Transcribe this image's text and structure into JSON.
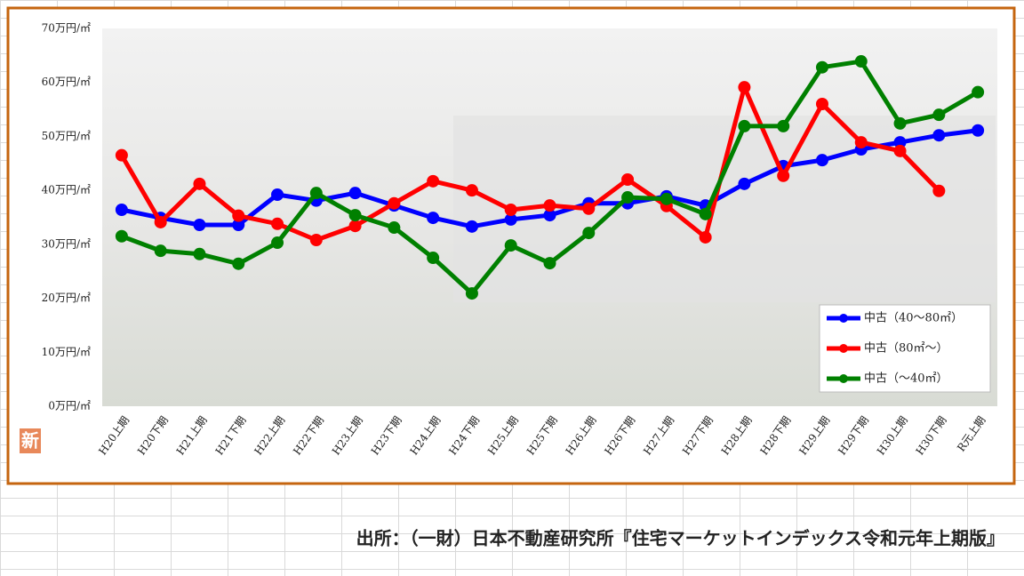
{
  "chart_data": {
    "type": "line",
    "categories": [
      "H20上期",
      "H20下期",
      "H21上期",
      "H21下期",
      "H22上期",
      "H22下期",
      "H23上期",
      "H23下期",
      "H24上期",
      "H24下期",
      "H25上期",
      "H25下期",
      "H26上期",
      "H26下期",
      "H27上期",
      "H27下期",
      "H28上期",
      "H28下期",
      "H29上期",
      "H29下期",
      "H30上期",
      "H30下期",
      "R元上期"
    ],
    "series": [
      {
        "name": "中古（40～80㎡）",
        "color": "#0000ff",
        "values": [
          36.4,
          34.9,
          33.6,
          33.6,
          39.2,
          38.1,
          39.5,
          37.2,
          34.9,
          33.3,
          34.6,
          35.4,
          37.6,
          37.6,
          38.9,
          37.2,
          41.2,
          44.5,
          45.6,
          47.6,
          48.9,
          50.2,
          51.1
        ]
      },
      {
        "name": "中古（80㎡～）",
        "color": "#ff0000",
        "values": [
          46.5,
          34.1,
          41.2,
          35.3,
          33.8,
          30.8,
          33.4,
          37.6,
          41.7,
          40.0,
          36.4,
          37.2,
          36.6,
          42.0,
          37.1,
          31.3,
          59.1,
          42.7,
          56.0,
          48.9,
          47.3,
          39.9,
          null
        ]
      },
      {
        "name": "中古（～40㎡）",
        "color": "#008000",
        "values": [
          31.5,
          28.8,
          28.2,
          26.4,
          30.3,
          39.5,
          35.4,
          33.1,
          27.5,
          20.9,
          29.8,
          26.5,
          32.1,
          38.7,
          38.4,
          35.6,
          51.9,
          51.9,
          62.8,
          63.9,
          52.4,
          54.0,
          58.2
        ]
      }
    ],
    "ylim": [
      0,
      70
    ],
    "yticks": [
      {
        "value": 0,
        "label": "0万円/㎡"
      },
      {
        "value": 10,
        "label": "10万円/㎡"
      },
      {
        "value": 20,
        "label": "20万円/㎡"
      },
      {
        "value": 30,
        "label": "30万円/㎡"
      },
      {
        "value": 40,
        "label": "40万円/㎡"
      },
      {
        "value": 50,
        "label": "50万円/㎡"
      },
      {
        "value": 60,
        "label": "60万円/㎡"
      },
      {
        "value": 70,
        "label": "70万円/㎡"
      }
    ],
    "legend": "lower right",
    "badge": "新",
    "source": "出所：（一財）日本不動産研究所『住宅マーケットインデックス令和元年上期版』"
  }
}
